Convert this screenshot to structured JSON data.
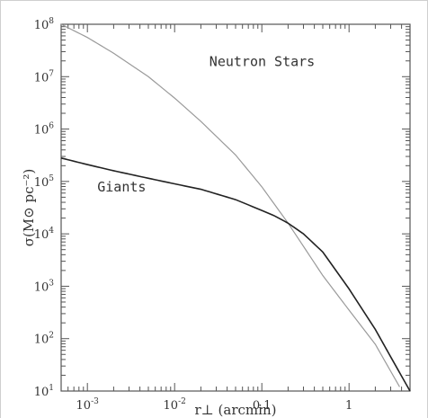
{
  "chart_data": {
    "type": "line",
    "xscale": "log",
    "yscale": "log",
    "xlim": [
      0.0005,
      5
    ],
    "ylim": [
      10,
      100000000
    ],
    "xlabel": "r⊥ (arcmin)",
    "ylabel": "σ(M⊙ pc⁻²)",
    "xticks": [
      {
        "value": 0.001,
        "base": "10",
        "exp": "-3"
      },
      {
        "value": 0.01,
        "base": "10",
        "exp": "-2"
      },
      {
        "value": 0.1,
        "label": "0.1"
      },
      {
        "value": 1,
        "label": "1"
      }
    ],
    "yticks": [
      {
        "value": 10,
        "base": "10",
        "exp": "1"
      },
      {
        "value": 100,
        "base": "10",
        "exp": "2"
      },
      {
        "value": 1000,
        "base": "10",
        "exp": "3"
      },
      {
        "value": 10000,
        "base": "10",
        "exp": "4"
      },
      {
        "value": 100000,
        "base": "10",
        "exp": "5"
      },
      {
        "value": 1000000,
        "base": "10",
        "exp": "6"
      },
      {
        "value": 10000000,
        "base": "10",
        "exp": "7"
      },
      {
        "value": 100000000,
        "base": "10",
        "exp": "8"
      }
    ],
    "series": [
      {
        "name": "Neutron Stars",
        "color": "#9a9a9a",
        "x": [
          0.0005,
          0.001,
          0.002,
          0.005,
          0.01,
          0.02,
          0.05,
          0.1,
          0.2,
          0.5,
          1,
          2,
          3.8
        ],
        "y": [
          100000000,
          56000000,
          28000000,
          10000000,
          3900000,
          1400000,
          320000,
          79000,
          16000,
          1600,
          350,
          78,
          12
        ]
      },
      {
        "name": "Giants",
        "color": "#222222",
        "x": [
          0.0005,
          0.001,
          0.002,
          0.005,
          0.01,
          0.02,
          0.05,
          0.1,
          0.14,
          0.2,
          0.3,
          0.5,
          1,
          2,
          3,
          5
        ],
        "y": [
          280000,
          210000,
          160000,
          115000,
          90000,
          71000,
          45000,
          28000,
          22000,
          16000,
          10000,
          4500,
          890,
          150,
          45,
          10
        ]
      }
    ],
    "annotations": [
      {
        "text": "Neutron Stars",
        "x": 0.025,
        "y": 16000000
      },
      {
        "text": "Giants",
        "x": 0.0013,
        "y": 65000
      }
    ]
  }
}
